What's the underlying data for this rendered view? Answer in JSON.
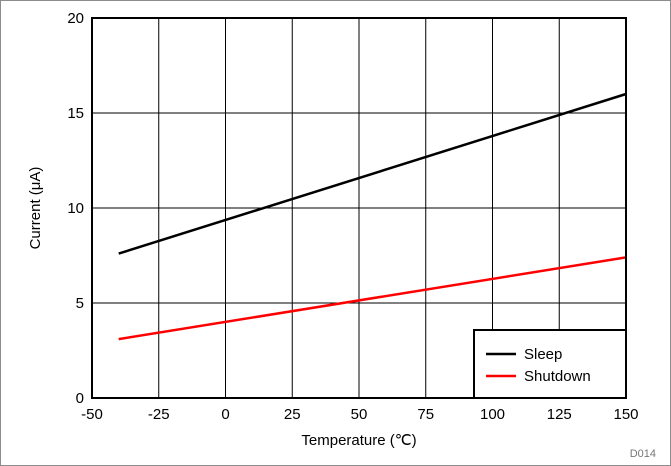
{
  "chart_data": {
    "type": "line",
    "xlabel": "Temperature (℃)",
    "ylabel": "Current (μA)",
    "xlim": [
      -50,
      150
    ],
    "ylim": [
      0,
      20
    ],
    "xticks": [
      -50,
      -25,
      0,
      25,
      50,
      75,
      100,
      125,
      150
    ],
    "yticks": [
      0,
      5,
      10,
      15,
      20
    ],
    "grid": true,
    "legend_position": "bottom-right",
    "series": [
      {
        "name": "Sleep",
        "color": "#000000",
        "x": [
          -40,
          150
        ],
        "y": [
          7.6,
          16.0
        ]
      },
      {
        "name": "Shutdown",
        "color": "#ff0000",
        "x": [
          -40,
          150
        ],
        "y": [
          3.1,
          7.4
        ]
      }
    ]
  },
  "figure_id": "D014"
}
